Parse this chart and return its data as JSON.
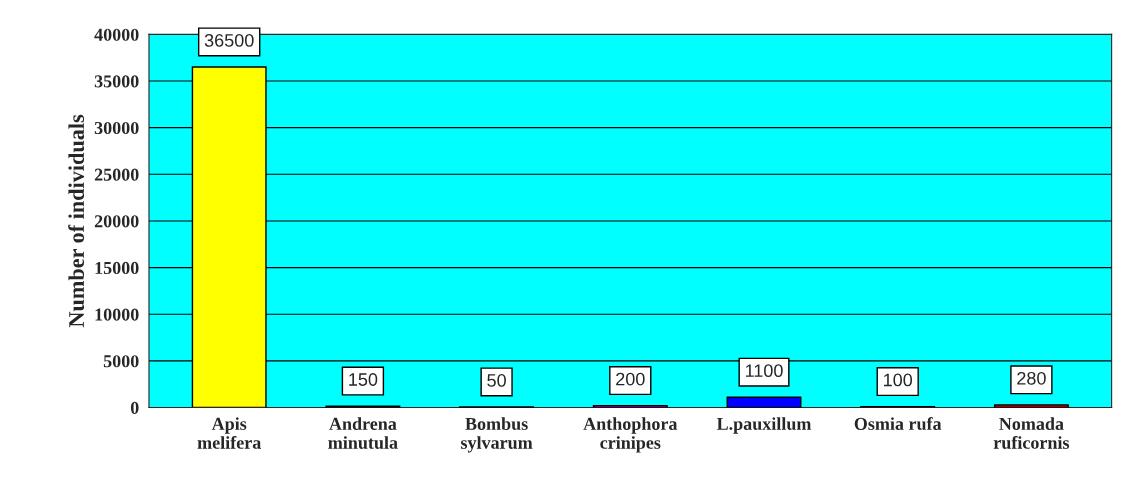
{
  "chart_data": {
    "type": "bar",
    "ylabel": "Number of individuals",
    "categories": [
      "Apis\nmelifera",
      "Andrena\nminutula",
      "Bombus\nsylvarum",
      "Anthophora\ncrinipes",
      "L.pauxillum",
      "Osmia rufa",
      "Nomada\nruficornis"
    ],
    "values": [
      36500,
      150,
      50,
      200,
      1100,
      100,
      280
    ],
    "colors": [
      "#ffff00",
      "#006600",
      "#660000",
      "#cc00cc",
      "#0000ff",
      "#3399cc",
      "#cc0000"
    ],
    "ylim": [
      0,
      40000
    ],
    "yticks": [
      0,
      5000,
      10000,
      15000,
      20000,
      25000,
      30000,
      35000,
      40000
    ],
    "grid": "y",
    "data_labels": true
  }
}
